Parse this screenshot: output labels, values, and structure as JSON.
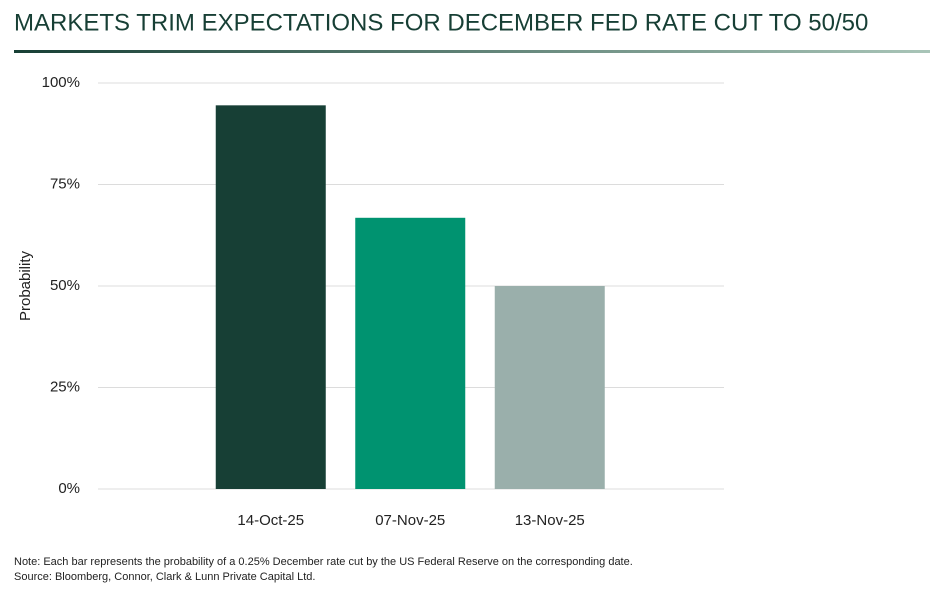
{
  "chart_data": {
    "type": "bar",
    "title": "MARKETS TRIM EXPECTATIONS FOR DECEMBER FED RATE CUT TO 50/50",
    "y_label": "Probability",
    "categories": [
      "14-Oct-25",
      "07-Nov-25",
      "13-Nov-25"
    ],
    "values": [
      94.5,
      66.8,
      50
    ],
    "colors": [
      "#173f35",
      "#009370",
      "#9aafab"
    ],
    "ylim": [
      0,
      100
    ],
    "yticks": [
      {
        "value": 0,
        "label": "0%"
      },
      {
        "value": 25,
        "label": "25%"
      },
      {
        "value": 50,
        "label": "50%"
      },
      {
        "value": 75,
        "label": "75%"
      },
      {
        "value": 100,
        "label": "100%"
      }
    ],
    "grid": true,
    "note": "Note:  Each bar represents the probability of a 0.25% December rate cut by the US Federal Reserve on the corresponding date.",
    "source": "Source:  Bloomberg, Connor, Clark & Lunn Private Capital Ltd."
  }
}
